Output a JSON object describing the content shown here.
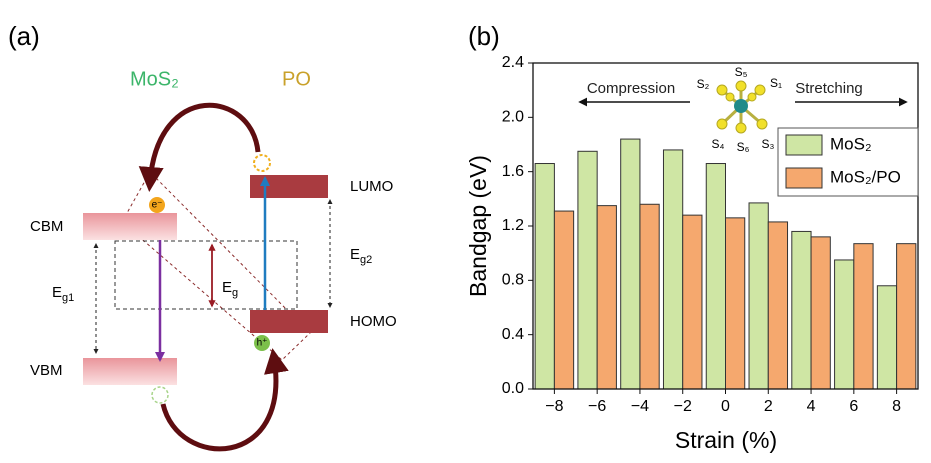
{
  "panel_a": {
    "label": "(a)",
    "mos2_title": "MoS₂",
    "po_title": "PO",
    "lumo": "LUMO",
    "homo": "HOMO",
    "cbm": "CBM",
    "vbm": "VBM",
    "eg": {
      "main": "E",
      "sub": "g"
    },
    "eg1": {
      "main": "E",
      "sub": "g1"
    },
    "eg2": {
      "main": "E",
      "sub": "g2"
    },
    "electron": "e⁻",
    "hole": "h⁺"
  },
  "chart_data": {
    "type": "bar",
    "panel_label": "(b)",
    "x_label": "Strain (%)",
    "y_label": "Bandgap (eV)",
    "x": [
      -8,
      -6,
      -4,
      -2,
      0,
      2,
      4,
      6,
      8
    ],
    "series": [
      {
        "name": "MoS₂",
        "color": "#cfe6a4",
        "values": [
          1.66,
          1.75,
          1.84,
          1.76,
          1.66,
          1.37,
          1.16,
          0.95,
          0.76
        ]
      },
      {
        "name": "MoS₂/PO",
        "color": "#f5a86e",
        "values": [
          1.31,
          1.35,
          1.36,
          1.28,
          1.26,
          1.23,
          1.12,
          1.07,
          1.07
        ]
      }
    ],
    "xlim": [
      -9,
      9
    ],
    "xticks": [
      {
        "value": -8,
        "label": "−8"
      },
      {
        "value": -6,
        "label": "−6"
      },
      {
        "value": -4,
        "label": "−4"
      },
      {
        "value": -2,
        "label": "−2"
      },
      0,
      2,
      4,
      6,
      8
    ],
    "ylim": [
      0,
      2.4
    ],
    "yticks": [
      {
        "value": 0,
        "label": "0.0"
      },
      0.4,
      0.8,
      1.2,
      1.6,
      {
        "value": 2,
        "label": "2.0"
      },
      2.4
    ],
    "legend": "upper right",
    "annotations": {
      "compression": "Compression",
      "stretching": "Stretching",
      "s1": "S₁",
      "s2": "S₂",
      "s3": "S₃",
      "s4": "S₄",
      "s5": "S₅",
      "s6": "S₆"
    }
  }
}
